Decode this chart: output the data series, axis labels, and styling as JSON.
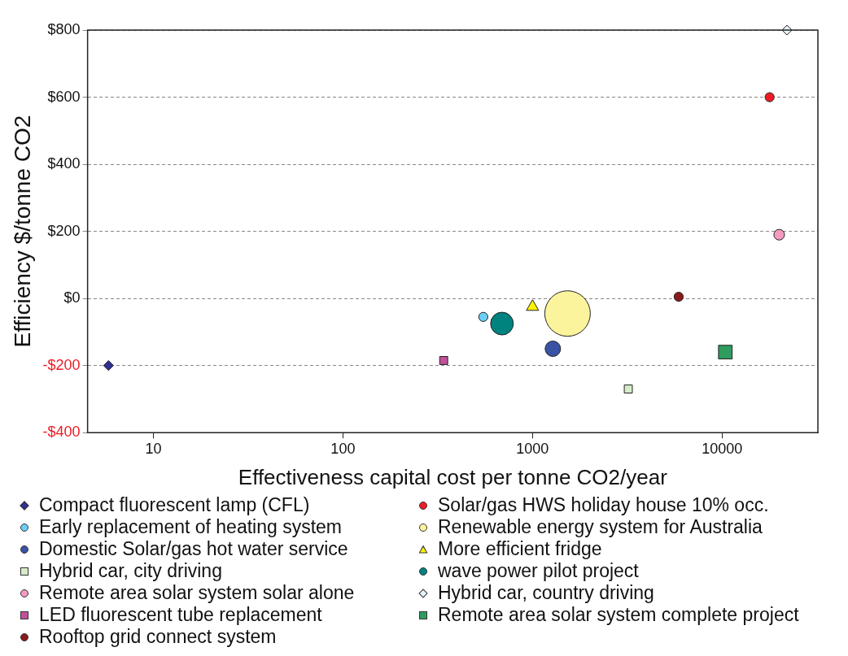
{
  "chart_data": {
    "type": "bubble",
    "xlabel": "Effectiveness capital cost per tonne CO2/year",
    "ylabel": "Efficiency $/tonne CO2",
    "log": "x",
    "grid": "y",
    "legend": "bottom",
    "xlim": [
      4.5,
      32000
    ],
    "xticks": [
      10,
      100,
      1000,
      10000
    ],
    "ylim": [
      -400,
      800
    ],
    "yticks": [
      {
        "value": -400,
        "label": "-$400"
      },
      {
        "value": -200,
        "label": "-$200"
      },
      {
        "value": 0,
        "label": "$0"
      },
      {
        "value": 200,
        "label": "$200"
      },
      {
        "value": 400,
        "label": "$400"
      },
      {
        "value": 600,
        "label": "$600"
      },
      {
        "value": 800,
        "label": "$800"
      }
    ],
    "series": [
      {
        "name": "Compact fluorescent lamp (CFL)",
        "color": "#2e3192",
        "marker": "diamond",
        "x": [
          5.8
        ],
        "values": [
          -200
        ],
        "sizes": [
          0.03
        ]
      },
      {
        "name": "Early replacement of heating system",
        "color": "#6dcff6",
        "marker": "circle",
        "x": [
          550
        ],
        "values": [
          -55
        ],
        "sizes": [
          0.04
        ]
      },
      {
        "name": "Domestic Solar/gas hot water service",
        "color": "#3953a4",
        "marker": "circle",
        "x": [
          1280
        ],
        "values": [
          -150
        ],
        "sizes": [
          0.115
        ]
      },
      {
        "name": "Hybrid car, city driving",
        "color": "#d7ecc8",
        "marker": "square",
        "x": [
          3200
        ],
        "values": [
          -270
        ],
        "sizes": [
          0.04
        ]
      },
      {
        "name": "Remote area solar system solar alone",
        "color": "#f49ac1",
        "marker": "circle",
        "x": [
          20000
        ],
        "values": [
          190
        ],
        "sizes": [
          0.055
        ]
      },
      {
        "name": "LED fluorescent tube replacement",
        "color": "#c2509b",
        "marker": "square",
        "x": [
          340
        ],
        "values": [
          -185
        ],
        "sizes": [
          0.04
        ]
      },
      {
        "name": "Rooftop grid connect system",
        "color": "#8b1a1a",
        "marker": "circle",
        "x": [
          5900
        ],
        "values": [
          5
        ],
        "sizes": [
          0.04
        ]
      },
      {
        "name": "Solar/gas HWS holiday house 10% occ.",
        "color": "#ed1c24",
        "marker": "circle",
        "x": [
          17800
        ],
        "values": [
          600
        ],
        "sizes": [
          0.04
        ]
      },
      {
        "name": "Renewable energy system for Australia",
        "color": "#fbf49c",
        "marker": "circle",
        "x": [
          1530
        ],
        "values": [
          -45
        ],
        "sizes": [
          1
        ]
      },
      {
        "name": "More efficient fridge",
        "color": "#fff200",
        "marker": "triangle",
        "x": [
          1000
        ],
        "values": [
          -25
        ],
        "sizes": [
          0.04
        ]
      },
      {
        "name": "wave power pilot project",
        "color": "#00827f",
        "marker": "circle",
        "x": [
          690
        ],
        "values": [
          -75
        ],
        "sizes": [
          0.25
        ]
      },
      {
        "name": "Hybrid car, country driving",
        "color": "#e6f4f8",
        "marker": "diamond",
        "x": [
          22000
        ],
        "values": [
          800
        ],
        "sizes": [
          0.03
        ]
      },
      {
        "name": "Remote area solar system complete project",
        "color": "#2e9c5e",
        "marker": "square",
        "x": [
          10400
        ],
        "values": [
          -160
        ],
        "sizes": [
          0.115
        ]
      }
    ]
  }
}
